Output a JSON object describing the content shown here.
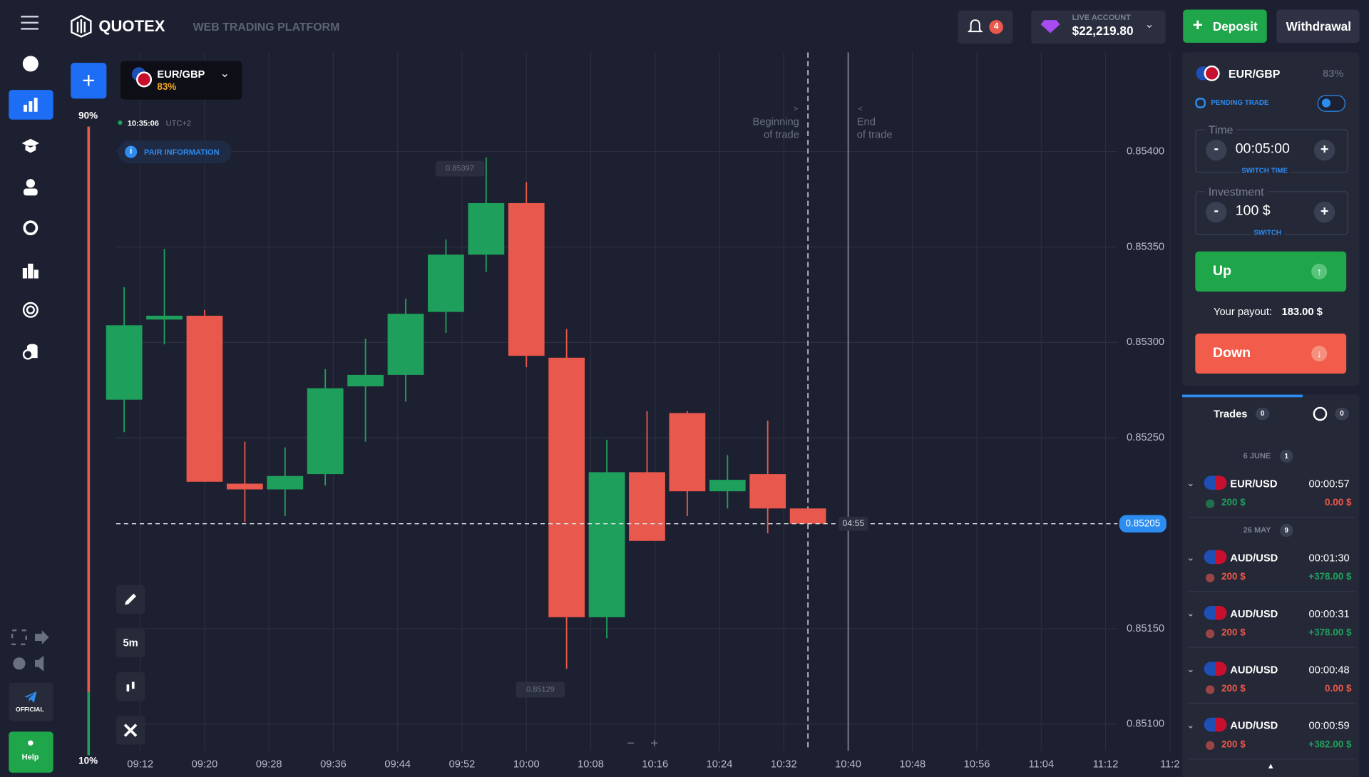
{
  "header": {
    "logo": "QUOTEX",
    "subtitle": "WEB TRADING PLATFORM",
    "notifications": "4",
    "account_label": "LIVE ACCOUNT",
    "balance": "$22,219.80",
    "deposit": "Deposit",
    "withdrawal": "Withdrawal"
  },
  "sidebar": {
    "official": "OFFICIAL",
    "help": "Help"
  },
  "asset_tab": {
    "pair": "EUR/GBP",
    "payout": "83%"
  },
  "chart_info": {
    "time": "10:35:06",
    "timezone": "UTC+2",
    "pair_information": "PAIR INFORMATION",
    "timeframe": "5m",
    "zoom_out": "−",
    "zoom_in": "+"
  },
  "sentiment": {
    "values": [
      90,
      10
    ],
    "value_labels": [
      "90%",
      "10%"
    ],
    "colors": [
      "#e9584c",
      "#1ea05c"
    ]
  },
  "chart_data": {
    "type": "candlestick",
    "x": [
      550,
      555,
      560,
      565,
      570,
      575,
      580,
      585,
      590,
      595,
      600,
      605,
      610,
      615,
      620,
      625,
      630,
      635
    ],
    "open": [
      0.8527,
      0.85312,
      0.85314,
      0.85226,
      0.85223,
      0.85231,
      0.85277,
      0.85283,
      0.85316,
      0.85346,
      0.85373,
      0.85292,
      0.85156,
      0.85232,
      0.85263,
      0.85222,
      0.85231,
      0.85213
    ],
    "high": [
      0.85329,
      0.85349,
      0.85317,
      0.85248,
      0.85245,
      0.85286,
      0.85302,
      0.85323,
      0.85354,
      0.85397,
      0.85384,
      0.85307,
      0.85249,
      0.85264,
      0.85264,
      0.85241,
      0.85259,
      0.85213
    ],
    "low": [
      0.85253,
      0.85299,
      0.85227,
      0.85206,
      0.85209,
      0.85225,
      0.85248,
      0.85269,
      0.85305,
      0.85337,
      0.85287,
      0.85129,
      0.85145,
      0.85196,
      0.85209,
      0.85213,
      0.852,
      0.85205
    ],
    "close": [
      0.85309,
      0.85314,
      0.85227,
      0.85223,
      0.8523,
      0.85276,
      0.85283,
      0.85315,
      0.85346,
      0.85373,
      0.85293,
      0.85156,
      0.85232,
      0.85196,
      0.85222,
      0.85228,
      0.85213,
      0.85205
    ],
    "xlim": [
      549,
      680
    ],
    "xticks": [
      {
        "value": 552,
        "label": "09:12"
      },
      {
        "value": 560,
        "label": "09:20"
      },
      {
        "value": 568,
        "label": "09:28"
      },
      {
        "value": 576,
        "label": "09:36"
      },
      {
        "value": 584,
        "label": "09:44"
      },
      {
        "value": 592,
        "label": "09:52"
      },
      {
        "value": 600,
        "label": "10:00"
      },
      {
        "value": 608,
        "label": "10:08"
      },
      {
        "value": 616,
        "label": "10:16"
      },
      {
        "value": 624,
        "label": "10:24"
      },
      {
        "value": 632,
        "label": "10:32"
      },
      {
        "value": 640,
        "label": "10:40"
      },
      {
        "value": 648,
        "label": "10:48"
      },
      {
        "value": 656,
        "label": "10:56"
      },
      {
        "value": 664,
        "label": "11:04"
      },
      {
        "value": 672,
        "label": "11:12"
      },
      {
        "value": 680,
        "label": "11:2"
      }
    ],
    "ylim": [
      0.85086,
      0.85452
    ],
    "yticks": [
      {
        "value": 0.851,
        "label": "0.85100"
      },
      {
        "value": 0.8515,
        "label": "0.85150"
      },
      {
        "value": 0.8525,
        "label": "0.85250"
      },
      {
        "value": 0.853,
        "label": "0.85300"
      },
      {
        "value": 0.8535,
        "label": "0.85350"
      },
      {
        "value": 0.854,
        "label": "0.85400"
      }
    ],
    "grid": true,
    "up_color": "#1ea05c",
    "down_color": "#e9584c",
    "current_price": {
      "value": 0.85205,
      "label": "0.85205"
    },
    "timer": "04:55",
    "trade_start": {
      "x": 635,
      "label_lines": [
        "Beginning",
        "of trade"
      ]
    },
    "trade_end": {
      "x": 640,
      "label_lines": [
        "End",
        "of trade"
      ]
    },
    "high_label": {
      "x": 595,
      "value": 0.85397,
      "label": "0.85397"
    },
    "low_label": {
      "x": 605,
      "value": 0.85129,
      "label": "0.85129"
    }
  },
  "trade_panel": {
    "pair": "EUR/GBP",
    "payout": "83%",
    "pending_trade": "PENDING TRADE",
    "time_label": "Time",
    "time_value": "00:05:00",
    "switch_time": "SWITCH TIME",
    "investment_label": "Investment",
    "investment_value": "100 $",
    "switch": "SWITCH",
    "up": "Up",
    "payout_label": "Your payout:",
    "payout_value": "183.00 $",
    "down": "Down"
  },
  "trades": {
    "tab": "Trades",
    "count": "0",
    "history_count": "0",
    "groups": [
      {
        "date": "6 JUNE",
        "count": "1",
        "items": [
          {
            "pair": "EUR/USD",
            "duration": "00:00:57",
            "amount": "200 $",
            "result": "0.00 $"
          }
        ]
      },
      {
        "date": "26 MAY",
        "count": "9",
        "items": [
          {
            "pair": "AUD/USD",
            "duration": "00:01:30",
            "amount": "200 $",
            "result": "+378.00 $"
          },
          {
            "pair": "AUD/USD",
            "duration": "00:00:31",
            "amount": "200 $",
            "result": "+378.00 $"
          },
          {
            "pair": "AUD/USD",
            "duration": "00:00:48",
            "amount": "200 $",
            "result": "0.00 $"
          },
          {
            "pair": "AUD/USD",
            "duration": "00:00:59",
            "amount": "200 $",
            "result": "+382.00 $"
          }
        ]
      }
    ]
  }
}
